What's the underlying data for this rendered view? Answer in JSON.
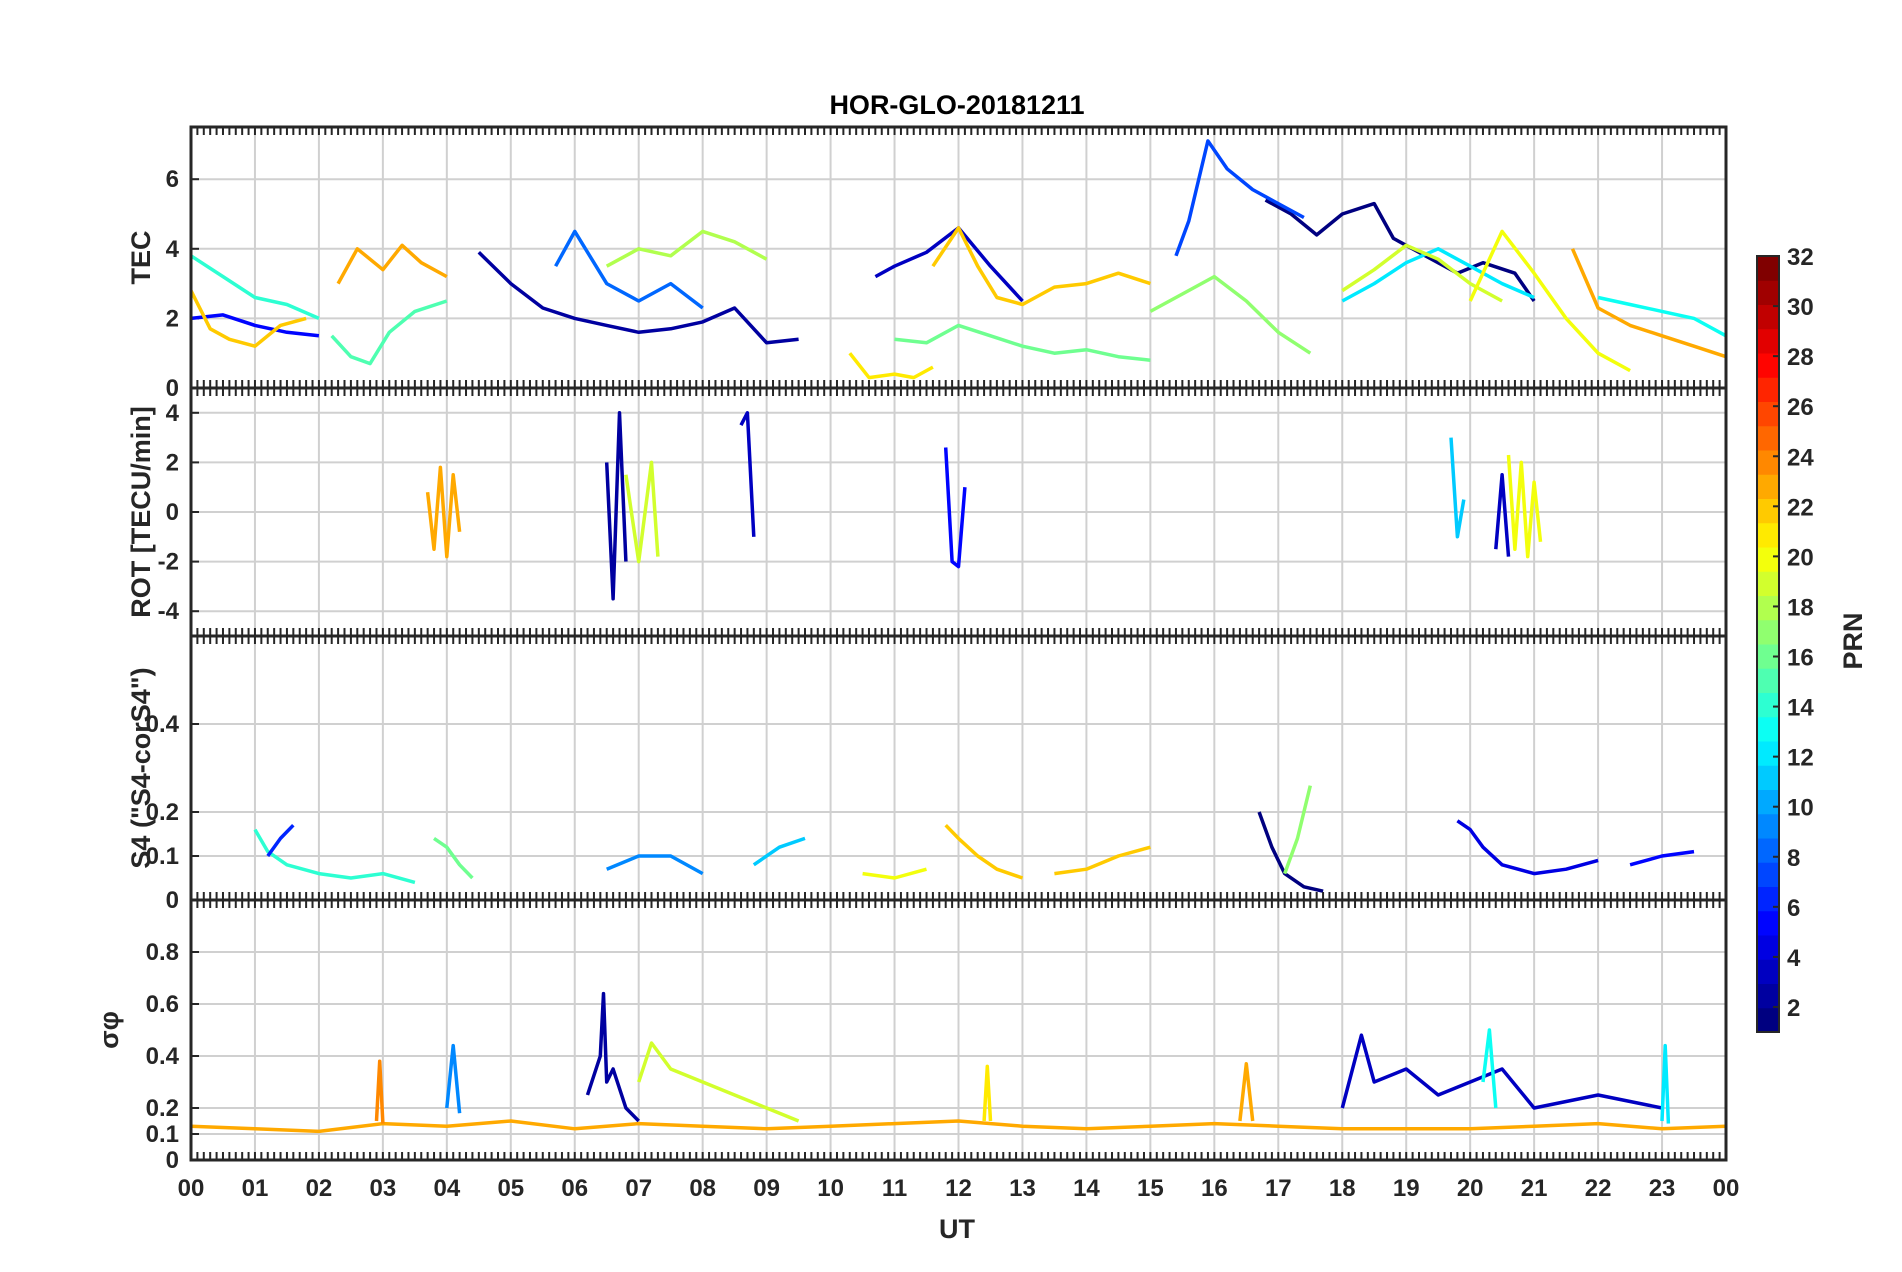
{
  "title": "HOR-GLO-20181211",
  "xlabel": "UT",
  "x_tick_labels": [
    "00",
    "01",
    "02",
    "03",
    "04",
    "05",
    "06",
    "07",
    "08",
    "09",
    "10",
    "11",
    "12",
    "13",
    "14",
    "15",
    "16",
    "17",
    "18",
    "19",
    "20",
    "21",
    "22",
    "23",
    "00"
  ],
  "colorbar": {
    "label": "PRN",
    "range": [
      1,
      32
    ],
    "tick_labels": [
      "2",
      "4",
      "6",
      "8",
      "10",
      "12",
      "14",
      "16",
      "18",
      "20",
      "22",
      "24",
      "26",
      "28",
      "30",
      "32"
    ],
    "colormap": "jet"
  },
  "chart_data": [
    {
      "type": "line",
      "name": "tec",
      "ylabel": "TEC",
      "ylim": [
        0,
        7.5
      ],
      "ytick_labels": [
        "0",
        "2",
        "4",
        "6"
      ],
      "xlim": [
        0,
        24
      ],
      "series": [
        {
          "prn": 2,
          "x": [
            4.5,
            5,
            5.5,
            6,
            6.5,
            7,
            7.5,
            8,
            8.5,
            9,
            9.5
          ],
          "y": [
            3.9,
            3.0,
            2.3,
            2.0,
            1.8,
            1.6,
            1.7,
            1.9,
            2.3,
            1.3,
            1.4
          ]
        },
        {
          "prn": 3,
          "x": [
            10.7,
            11,
            11.5,
            12,
            12.5,
            13
          ],
          "y": [
            3.2,
            3.5,
            3.9,
            4.6,
            3.5,
            2.5
          ]
        },
        {
          "prn": 5,
          "x": [
            0,
            0.5,
            1,
            1.5,
            2
          ],
          "y": [
            2.0,
            2.1,
            1.8,
            1.6,
            1.5
          ]
        },
        {
          "prn": 1,
          "x": [
            16.8,
            17.2,
            17.6,
            18,
            18.5,
            18.8,
            19.3,
            19.8,
            20.2,
            20.7,
            21
          ],
          "y": [
            5.4,
            5.0,
            4.4,
            5.0,
            5.3,
            4.3,
            3.8,
            3.3,
            3.6,
            3.3,
            2.5
          ]
        },
        {
          "prn": 7,
          "x": [
            15.4,
            15.6,
            15.9,
            16.2,
            16.6,
            17,
            17.4
          ],
          "y": [
            3.8,
            4.8,
            7.1,
            6.3,
            5.7,
            5.3,
            4.9
          ]
        },
        {
          "prn": 8,
          "x": [
            5.7,
            6,
            6.5,
            7,
            7.5,
            8
          ],
          "y": [
            3.5,
            4.5,
            3.0,
            2.5,
            3.0,
            2.3
          ]
        },
        {
          "prn": 12,
          "x": [
            18,
            18.5,
            19,
            19.5,
            20,
            20.5,
            21
          ],
          "y": [
            2.5,
            3.0,
            3.6,
            4.0,
            3.5,
            3.0,
            2.6
          ]
        },
        {
          "prn": 14,
          "x": [
            0,
            0.5,
            1,
            1.5,
            2
          ],
          "y": [
            3.8,
            3.2,
            2.6,
            2.4,
            2.0
          ]
        },
        {
          "prn": 13,
          "x": [
            22,
            22.5,
            23,
            23.5,
            24
          ],
          "y": [
            2.6,
            2.4,
            2.2,
            2.0,
            1.5
          ]
        },
        {
          "prn": 15,
          "x": [
            2.2,
            2.5,
            2.8,
            3.1,
            3.5,
            4
          ],
          "y": [
            1.5,
            0.9,
            0.7,
            1.6,
            2.2,
            2.5
          ]
        },
        {
          "prn": 16,
          "x": [
            11,
            11.5,
            12,
            12.5,
            13,
            13.5,
            14,
            14.5,
            15
          ],
          "y": [
            1.4,
            1.3,
            1.8,
            1.5,
            1.2,
            1.0,
            1.1,
            0.9,
            0.8
          ]
        },
        {
          "prn": 17,
          "x": [
            15,
            15.5,
            16,
            16.5,
            17,
            17.5
          ],
          "y": [
            2.2,
            2.7,
            3.2,
            2.5,
            1.6,
            1.0
          ]
        },
        {
          "prn": 18,
          "x": [
            6.5,
            7,
            7.5,
            8,
            8.5,
            9
          ],
          "y": [
            3.5,
            4.0,
            3.8,
            4.5,
            4.2,
            3.7
          ]
        },
        {
          "prn": 19,
          "x": [
            18,
            18.5,
            19,
            19.5,
            20,
            20.5
          ],
          "y": [
            2.8,
            3.4,
            4.1,
            3.7,
            3.0,
            2.5
          ]
        },
        {
          "prn": 21,
          "x": [
            10.3,
            10.6,
            11,
            11.3,
            11.6
          ],
          "y": [
            1.0,
            0.3,
            0.4,
            0.3,
            0.6
          ]
        },
        {
          "prn": 22,
          "x": [
            0,
            0.3,
            0.6,
            1,
            1.4,
            1.8
          ],
          "y": [
            2.8,
            1.7,
            1.4,
            1.2,
            1.8,
            2.0
          ]
        },
        {
          "prn": 23,
          "x": [
            2.3,
            2.6,
            3,
            3.3,
            3.6,
            4
          ],
          "y": [
            3.0,
            4.0,
            3.4,
            4.1,
            3.6,
            3.2
          ]
        },
        {
          "prn": 22,
          "x": [
            11.6,
            12,
            12.3,
            12.6,
            13,
            13.5,
            14,
            14.5,
            15
          ],
          "y": [
            3.5,
            4.6,
            3.5,
            2.6,
            2.4,
            2.9,
            3.0,
            3.3,
            3.0
          ]
        },
        {
          "prn": 23,
          "x": [
            21.6,
            22,
            22.5,
            23,
            23.5,
            24
          ],
          "y": [
            4.0,
            2.3,
            1.8,
            1.5,
            1.2,
            0.9
          ]
        },
        {
          "prn": 20,
          "x": [
            20,
            20.5,
            21,
            21.5,
            22,
            22.5
          ],
          "y": [
            2.5,
            4.5,
            3.3,
            2.0,
            1.0,
            0.5
          ]
        }
      ]
    },
    {
      "type": "line",
      "name": "rot",
      "ylabel": "ROT [TECU/min]",
      "ylim": [
        -5,
        5
      ],
      "ytick_labels": [
        "-4",
        "-2",
        "0",
        "2",
        "4"
      ],
      "xlim": [
        0,
        24
      ],
      "series": [
        {
          "prn": 23,
          "x": [
            3.7,
            3.8,
            3.9,
            4.0,
            4.1,
            4.2
          ],
          "y": [
            0.8,
            -1.5,
            1.8,
            -1.8,
            1.5,
            -0.8
          ]
        },
        {
          "prn": 2,
          "x": [
            6.5,
            6.6,
            6.7,
            6.8
          ],
          "y": [
            2.0,
            -3.5,
            4.0,
            -2.0
          ]
        },
        {
          "prn": 3,
          "x": [
            8.6,
            8.7,
            8.8
          ],
          "y": [
            3.5,
            4.0,
            -1.0
          ]
        },
        {
          "prn": 19,
          "x": [
            6.8,
            7.0,
            7.2,
            7.3
          ],
          "y": [
            1.5,
            -2.0,
            2.0,
            -1.8
          ]
        },
        {
          "prn": 5,
          "x": [
            11.8,
            11.9,
            12.0,
            12.1
          ],
          "y": [
            2.6,
            -2.0,
            -2.2,
            1.0
          ]
        },
        {
          "prn": 11,
          "x": [
            19.7,
            19.8,
            19.9
          ],
          "y": [
            3.0,
            -1.0,
            0.5
          ]
        },
        {
          "prn": 20,
          "x": [
            20.6,
            20.7,
            20.8,
            20.9,
            21.0,
            21.1
          ],
          "y": [
            2.3,
            -1.5,
            2.0,
            -1.8,
            1.2,
            -1.2
          ]
        },
        {
          "prn": 3,
          "x": [
            20.4,
            20.5,
            20.6
          ],
          "y": [
            -1.5,
            1.5,
            -1.8
          ]
        }
      ]
    },
    {
      "type": "line",
      "name": "s4",
      "ylabel": "S4 (\"S4-corS4\")",
      "ylim": [
        0,
        0.6
      ],
      "ytick_labels": [
        "0",
        "0.1",
        "0.2",
        "0.4"
      ],
      "xlim": [
        0,
        24
      ],
      "series": [
        {
          "prn": 14,
          "x": [
            1.0,
            1.2,
            1.5,
            2.0,
            2.5,
            3.0,
            3.5
          ],
          "y": [
            0.16,
            0.11,
            0.08,
            0.06,
            0.05,
            0.06,
            0.04
          ]
        },
        {
          "prn": 6,
          "x": [
            1.2,
            1.4,
            1.6
          ],
          "y": [
            0.1,
            0.14,
            0.17
          ]
        },
        {
          "prn": 16,
          "x": [
            3.8,
            4.0,
            4.2,
            4.4
          ],
          "y": [
            0.14,
            0.12,
            0.08,
            0.05
          ]
        },
        {
          "prn": 9,
          "x": [
            6.5,
            7.0,
            7.5,
            8.0
          ],
          "y": [
            0.07,
            0.1,
            0.1,
            0.06
          ]
        },
        {
          "prn": 11,
          "x": [
            8.8,
            9.2,
            9.6
          ],
          "y": [
            0.08,
            0.12,
            0.14
          ]
        },
        {
          "prn": 22,
          "x": [
            11.8,
            12.0,
            12.3,
            12.6,
            13.0
          ],
          "y": [
            0.17,
            0.14,
            0.1,
            0.07,
            0.05
          ]
        },
        {
          "prn": 22,
          "x": [
            13.5,
            14.0,
            14.5,
            15.0
          ],
          "y": [
            0.06,
            0.07,
            0.1,
            0.12
          ]
        },
        {
          "prn": 1,
          "x": [
            16.7,
            16.9,
            17.1,
            17.4,
            17.7
          ],
          "y": [
            0.2,
            0.12,
            0.06,
            0.03,
            0.02
          ]
        },
        {
          "prn": 17,
          "x": [
            17.1,
            17.3,
            17.5
          ],
          "y": [
            0.06,
            0.14,
            0.26
          ]
        },
        {
          "prn": 4,
          "x": [
            19.8,
            20.0,
            20.2,
            20.5,
            21.0,
            21.5,
            22.0
          ],
          "y": [
            0.18,
            0.16,
            0.12,
            0.08,
            0.06,
            0.07,
            0.09
          ]
        },
        {
          "prn": 5,
          "x": [
            22.5,
            23.0,
            23.5
          ],
          "y": [
            0.08,
            0.1,
            0.11
          ]
        },
        {
          "prn": 20,
          "x": [
            10.5,
            11.0,
            11.5
          ],
          "y": [
            0.06,
            0.05,
            0.07
          ]
        }
      ]
    },
    {
      "type": "line",
      "name": "sigma-phi",
      "ylabel": "σφ",
      "ylim": [
        0,
        1
      ],
      "ytick_labels": [
        "0",
        "0.1",
        "0.2",
        "0.4",
        "0.6",
        "0.8"
      ],
      "xlim": [
        0,
        24
      ],
      "series": [
        {
          "prn": 23,
          "x": [
            0,
            1,
            2,
            3,
            4,
            5,
            6,
            7,
            8,
            9,
            10,
            11,
            12,
            13,
            14,
            15,
            16,
            17,
            18,
            19,
            20,
            21,
            22,
            23,
            24
          ],
          "y": [
            0.13,
            0.12,
            0.11,
            0.14,
            0.13,
            0.15,
            0.12,
            0.14,
            0.13,
            0.12,
            0.13,
            0.14,
            0.15,
            0.13,
            0.12,
            0.13,
            0.14,
            0.13,
            0.12,
            0.12,
            0.12,
            0.13,
            0.14,
            0.12,
            0.13
          ]
        },
        {
          "prn": 2,
          "x": [
            6.2,
            6.4,
            6.45,
            6.5,
            6.6,
            6.8,
            7.0
          ],
          "y": [
            0.25,
            0.4,
            0.64,
            0.3,
            0.35,
            0.2,
            0.15
          ]
        },
        {
          "prn": 19,
          "x": [
            7.0,
            7.2,
            7.5,
            8.0,
            8.5,
            9.0,
            9.5
          ],
          "y": [
            0.3,
            0.45,
            0.35,
            0.3,
            0.25,
            0.2,
            0.15
          ]
        },
        {
          "prn": 3,
          "x": [
            18.0,
            18.3,
            18.5,
            19,
            19.5,
            20,
            20.5,
            21,
            22,
            23
          ],
          "y": [
            0.2,
            0.48,
            0.3,
            0.35,
            0.25,
            0.3,
            0.35,
            0.2,
            0.25,
            0.2
          ]
        },
        {
          "prn": 13,
          "x": [
            20.2,
            20.3,
            20.4
          ],
          "y": [
            0.3,
            0.5,
            0.2
          ]
        },
        {
          "prn": 9,
          "x": [
            4.0,
            4.1,
            4.2
          ],
          "y": [
            0.2,
            0.44,
            0.18
          ]
        },
        {
          "prn": 24,
          "x": [
            2.9,
            2.95,
            3.0
          ],
          "y": [
            0.15,
            0.38,
            0.14
          ]
        },
        {
          "prn": 23,
          "x": [
            16.4,
            16.5,
            16.6
          ],
          "y": [
            0.15,
            0.37,
            0.15
          ]
        },
        {
          "prn": 21,
          "x": [
            12.4,
            12.45,
            12.5
          ],
          "y": [
            0.15,
            0.36,
            0.15
          ]
        },
        {
          "prn": 12,
          "x": [
            23.0,
            23.05,
            23.1
          ],
          "y": [
            0.15,
            0.44,
            0.14
          ]
        }
      ]
    }
  ]
}
